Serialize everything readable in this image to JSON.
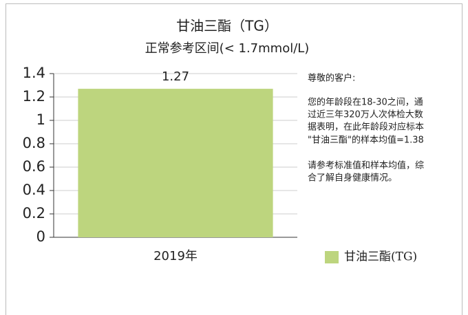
{
  "chart_data": {
    "type": "bar",
    "title": "甘油三酯（TG）",
    "subtitle": "正常参考区间(< 1.7mmol/L)",
    "categories": [
      "2019年"
    ],
    "series": [
      {
        "name": "甘油三酯(TG)",
        "color": "#bdd57e",
        "values": [
          1.27
        ]
      }
    ],
    "ylim": [
      0,
      1.4
    ],
    "yticks": [
      0,
      0.2,
      0.4,
      0.6,
      0.8,
      1,
      1.2,
      1.4
    ],
    "grid": true,
    "legend": "bottom-right",
    "annotations": [
      "尊敬的客户:",
      "您的年龄段在18-30之间，通",
      "过近三年320万人次体检大数",
      "据表明，在此年龄段对应标本",
      "\"甘油三酯\"的样本均值=1.38",
      "请参考标准值和样本均值，综",
      "合了解自身健康情况。"
    ]
  }
}
